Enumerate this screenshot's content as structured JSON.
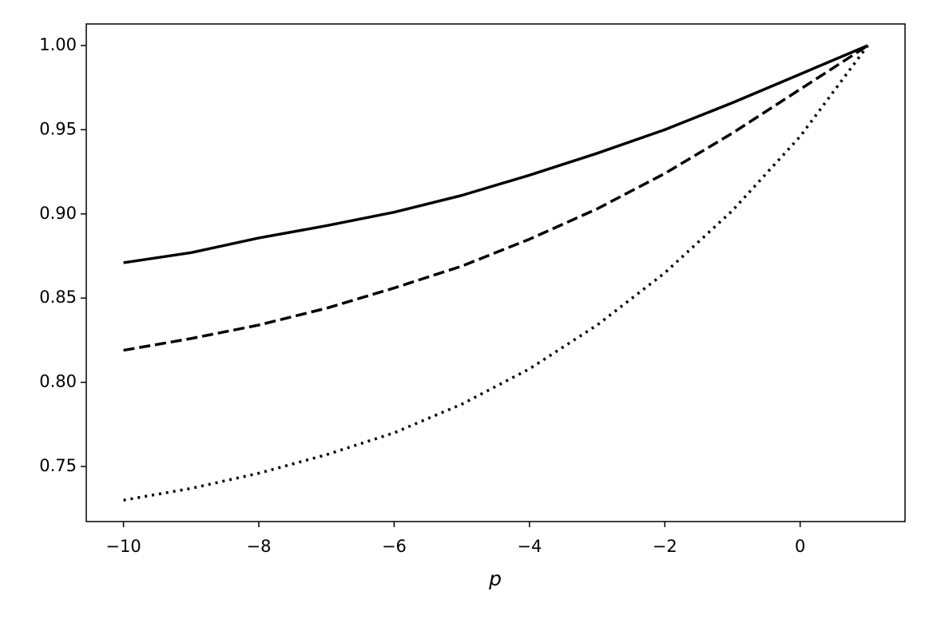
{
  "chart_data": {
    "type": "line",
    "xlabel": "p",
    "x": [
      -10,
      -9,
      -8,
      -7,
      -6,
      -5,
      -4,
      -3,
      -2,
      -1,
      0,
      1
    ],
    "series": [
      {
        "color": "#000000",
        "linestyle": "solid",
        "values": [
          0.871,
          0.877,
          0.8857,
          0.893,
          0.901,
          0.911,
          0.923,
          0.936,
          0.95,
          0.966,
          0.983,
          1.0
        ]
      },
      {
        "color": "#000000",
        "linestyle": "dashed",
        "values": [
          0.819,
          0.826,
          0.834,
          0.844,
          0.856,
          0.869,
          0.885,
          0.903,
          0.924,
          0.948,
          0.974,
          1.0
        ]
      },
      {
        "color": "#000000",
        "linestyle": "dotted",
        "values": [
          0.73,
          0.737,
          0.746,
          0.757,
          0.77,
          0.787,
          0.808,
          0.834,
          0.865,
          0.902,
          0.946,
          1.0
        ]
      }
    ],
    "xlim": [
      -10.55,
      1.55
    ],
    "xticks": [
      {
        "value": -10,
        "label": "−10"
      },
      {
        "value": -8,
        "label": "−8"
      },
      {
        "value": -6,
        "label": "−6"
      },
      {
        "value": -4,
        "label": "−4"
      },
      {
        "value": -2,
        "label": "−2"
      },
      0
    ],
    "ylim": [
      0.7173,
      1.0128
    ],
    "yticks": [
      0.75,
      {
        "value": 0.8,
        "label": "0.80"
      },
      0.85,
      {
        "value": 0.9,
        "label": "0.90"
      },
      0.95,
      {
        "value": 1.0,
        "label": "1.00"
      }
    ],
    "grid": false
  }
}
